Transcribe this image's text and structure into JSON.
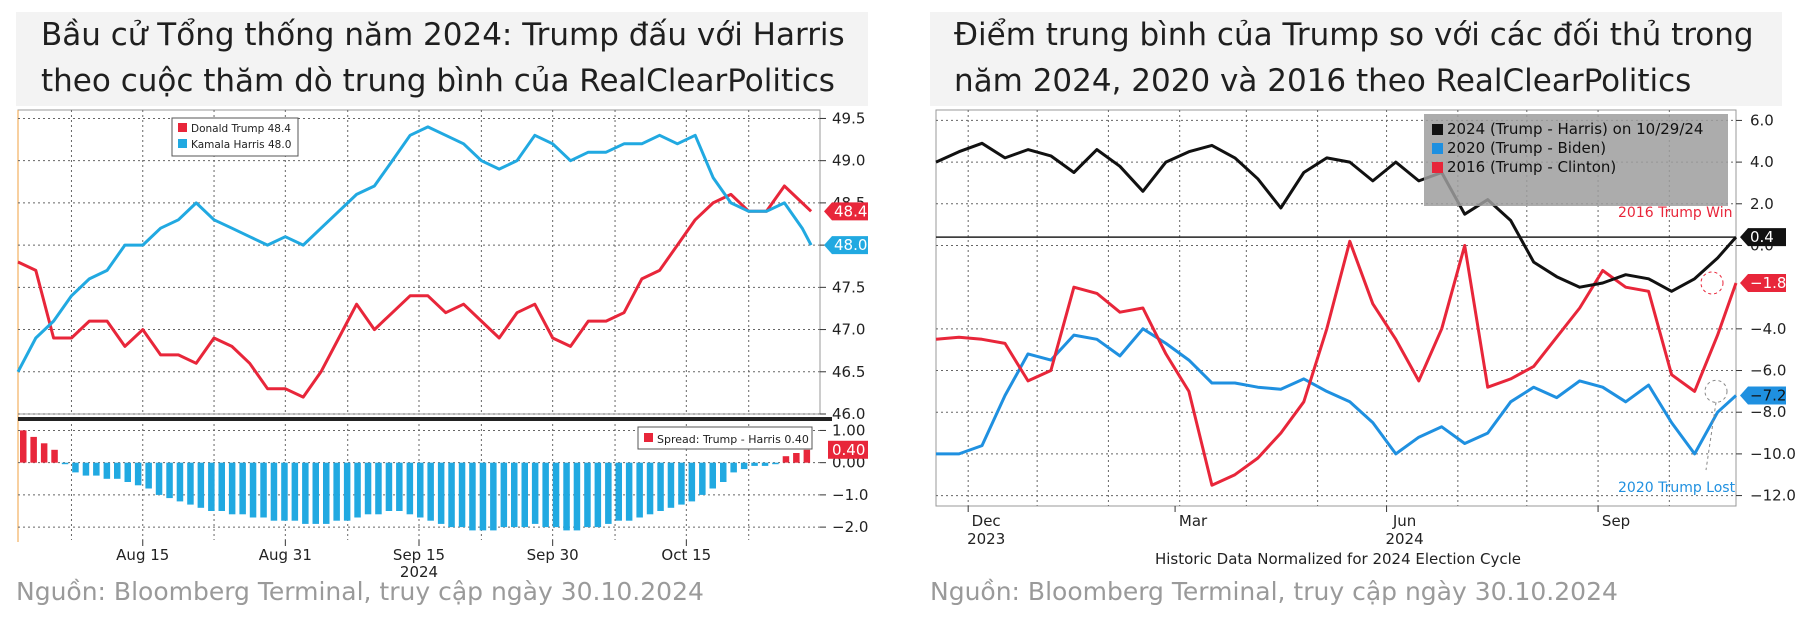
{
  "left": {
    "title_line1": "Bầu cử Tổng thống năm 2024: Trump đấu với Harris",
    "title_line2": "theo cuộc thăm dò trung bình của RealClearPolitics",
    "source": "Nguồn: Bloomberg Terminal,  truy cập ngày 30.10.2024"
  },
  "right": {
    "title_line1": "Điểm trung bình của Trump so với các đối thủ trong",
    "title_line2": "năm 2024, 2020 và 2016 theo RealClearPolitics",
    "source": "Nguồn: Bloomberg Terminal,  truy cập ngày 30.10.2024"
  },
  "colors": {
    "trump": "#e8263a",
    "harris": "#21a9e1",
    "biden": "#1f90e0",
    "clinton": "#e8263a",
    "y2024": "#111111",
    "spread_pos": "#e8263a",
    "spread_neg": "#21a9e1"
  },
  "chart_data": [
    {
      "type": "line",
      "title": "",
      "xlabel": "",
      "ylabel": "",
      "ylim": [
        46.0,
        49.6
      ],
      "x_ticks": [
        "Aug 15",
        "Aug 31",
        "Sep 15",
        "Sep 30",
        "Oct 15"
      ],
      "x_year_label": "2024",
      "y_ticks": [
        "49.5",
        "49.0",
        "48.5",
        "48.0",
        "47.5",
        "47.0",
        "46.5",
        "46.0"
      ],
      "legend": {
        "placement": "top-left",
        "entries": [
          {
            "name": "Donald Trump",
            "value": "48.4"
          },
          {
            "name": "Kamala Harris",
            "value": "48.0"
          }
        ]
      },
      "last_value_labels": [
        "48.4",
        "48.0"
      ],
      "x_days_note": "day index 0 = Aug 1 2024 .. 90 = Oct 30 2024",
      "series": [
        {
          "name": "Donald Trump",
          "color": "trump",
          "x": [
            0,
            2,
            4,
            6,
            8,
            10,
            12,
            14,
            16,
            18,
            20,
            22,
            24,
            26,
            28,
            30,
            32,
            34,
            36,
            38,
            40,
            42,
            44,
            46,
            48,
            50,
            52,
            54,
            56,
            58,
            60,
            62,
            64,
            66,
            68,
            70,
            72,
            74,
            76,
            78,
            80,
            82,
            84,
            86,
            88,
            89
          ],
          "y": [
            47.8,
            47.7,
            46.9,
            46.9,
            47.1,
            47.1,
            46.8,
            47.0,
            46.7,
            46.7,
            46.6,
            46.9,
            46.8,
            46.6,
            46.3,
            46.3,
            46.2,
            46.5,
            46.9,
            47.3,
            47.0,
            47.2,
            47.4,
            47.4,
            47.2,
            47.3,
            47.1,
            46.9,
            47.2,
            47.3,
            46.9,
            46.8,
            47.1,
            47.1,
            47.2,
            47.6,
            47.7,
            48.0,
            48.3,
            48.5,
            48.6,
            48.4,
            48.4,
            48.7,
            48.5,
            48.4
          ]
        },
        {
          "name": "Kamala Harris",
          "color": "harris",
          "x": [
            0,
            2,
            4,
            6,
            8,
            10,
            12,
            14,
            16,
            18,
            20,
            22,
            24,
            26,
            28,
            30,
            32,
            34,
            36,
            38,
            40,
            42,
            44,
            46,
            48,
            50,
            52,
            54,
            56,
            58,
            60,
            62,
            64,
            66,
            68,
            70,
            72,
            74,
            76,
            78,
            80,
            82,
            84,
            86,
            88,
            89
          ],
          "y": [
            46.5,
            46.9,
            47.1,
            47.4,
            47.6,
            47.7,
            48.0,
            48.0,
            48.2,
            48.3,
            48.5,
            48.3,
            48.2,
            48.1,
            48.0,
            48.1,
            48.0,
            48.2,
            48.4,
            48.6,
            48.7,
            49.0,
            49.3,
            49.4,
            49.3,
            49.2,
            49.0,
            48.9,
            49.0,
            49.3,
            49.2,
            49.0,
            49.1,
            49.1,
            49.2,
            49.2,
            49.3,
            49.2,
            49.3,
            48.8,
            48.5,
            48.4,
            48.4,
            48.5,
            48.2,
            48.0
          ]
        }
      ]
    },
    {
      "type": "bar",
      "title": "",
      "legend": {
        "placement": "top-right",
        "entries": [
          {
            "name": "Spread: Trump - Harris",
            "value": "0.40"
          }
        ]
      },
      "last_value_label": "0.40",
      "y_ticks": [
        "1.00",
        "0.00",
        "-1.00",
        "-2.00"
      ],
      "ylim": [
        -2.4,
        1.2
      ],
      "values": [
        1.0,
        0.8,
        0.6,
        0.4,
        0.0,
        -0.3,
        -0.4,
        -0.4,
        -0.5,
        -0.5,
        -0.6,
        -0.7,
        -0.8,
        -1.0,
        -1.1,
        -1.2,
        -1.3,
        -1.4,
        -1.5,
        -1.5,
        -1.6,
        -1.6,
        -1.7,
        -1.7,
        -1.8,
        -1.8,
        -1.8,
        -1.9,
        -1.9,
        -1.9,
        -1.8,
        -1.8,
        -1.7,
        -1.6,
        -1.6,
        -1.5,
        -1.5,
        -1.6,
        -1.7,
        -1.8,
        -1.9,
        -2.0,
        -2.0,
        -2.1,
        -2.1,
        -2.1,
        -2.0,
        -2.0,
        -2.0,
        -1.9,
        -2.0,
        -2.0,
        -2.1,
        -2.1,
        -2.0,
        -2.0,
        -1.9,
        -1.8,
        -1.8,
        -1.7,
        -1.6,
        -1.5,
        -1.4,
        -1.3,
        -1.2,
        -1.0,
        -0.8,
        -0.6,
        -0.3,
        -0.2,
        -0.1,
        -0.1,
        0.0,
        0.2,
        0.3,
        0.4
      ]
    },
    {
      "type": "line",
      "title": "",
      "xlabel": "Historic Data Normalized for 2024 Election Cycle",
      "ylabel": "",
      "ylim": [
        -12.5,
        6.5
      ],
      "x_ticks": [
        {
          "label": "Dec",
          "sub": "2023"
        },
        {
          "label": "Mar",
          "sub": ""
        },
        {
          "label": "Jun",
          "sub": "2024"
        },
        {
          "label": "Sep",
          "sub": ""
        }
      ],
      "y_ticks": [
        "6.0",
        "4.0",
        "2.0",
        "0.0",
        "-4.0",
        "-6.0",
        "-8.0",
        "-10.0",
        "-12.0"
      ],
      "legend": {
        "placement": "top-right",
        "entries": [
          {
            "name": "2024 (Trump - Harris) on 10/29/24"
          },
          {
            "name": "2020 (Trump - Biden)"
          },
          {
            "name": "2016 (Trump - Clinton)"
          }
        ]
      },
      "annotations": [
        "2016 Trump Win",
        "2020 Trump Lost"
      ],
      "last_value_labels": [
        "0.4",
        "-1.8",
        "-7.2"
      ],
      "x_days_note": "day index 0 = Nov 16 2023 .. 348 = Oct 29 2024",
      "series": [
        {
          "name": "2024 (Trump - Harris) on 10/29/24",
          "color": "y2024",
          "x": [
            0,
            10,
            20,
            30,
            40,
            50,
            60,
            70,
            80,
            90,
            100,
            110,
            120,
            130,
            140,
            150,
            160,
            170,
            180,
            190,
            200,
            210,
            220,
            230,
            240,
            250,
            260,
            270,
            280,
            290,
            300,
            310,
            320,
            330,
            340,
            348
          ],
          "y": [
            4.0,
            4.5,
            4.9,
            4.2,
            4.6,
            4.3,
            3.5,
            4.6,
            3.8,
            2.6,
            4.0,
            4.5,
            4.8,
            4.2,
            3.2,
            1.8,
            3.5,
            4.2,
            4.0,
            3.1,
            4.0,
            3.1,
            3.5,
            1.5,
            2.2,
            1.2,
            -0.8,
            -1.5,
            -2.0,
            -1.8,
            -1.4,
            -1.6,
            -2.2,
            -1.6,
            -0.6,
            0.4
          ]
        },
        {
          "name": "2020 (Trump - Biden)",
          "color": "biden",
          "x": [
            0,
            10,
            20,
            30,
            40,
            50,
            60,
            70,
            80,
            90,
            100,
            110,
            120,
            130,
            140,
            150,
            160,
            170,
            180,
            190,
            200,
            210,
            220,
            230,
            240,
            250,
            260,
            270,
            280,
            290,
            300,
            310,
            320,
            330,
            340,
            348
          ],
          "y": [
            -10.0,
            -10.0,
            -9.6,
            -7.2,
            -5.2,
            -5.5,
            -4.3,
            -4.5,
            -5.3,
            -4.0,
            -4.7,
            -5.5,
            -6.6,
            -6.6,
            -6.8,
            -6.9,
            -6.4,
            -7.0,
            -7.5,
            -8.5,
            -10.0,
            -9.2,
            -8.7,
            -9.5,
            -9.0,
            -7.5,
            -6.8,
            -7.3,
            -6.5,
            -6.8,
            -7.5,
            -6.7,
            -8.5,
            -10.0,
            -8.0,
            -7.2
          ]
        },
        {
          "name": "2016 (Trump - Clinton)",
          "color": "clinton",
          "x": [
            0,
            10,
            20,
            30,
            40,
            50,
            60,
            70,
            80,
            90,
            100,
            110,
            120,
            130,
            140,
            150,
            160,
            170,
            180,
            190,
            200,
            210,
            220,
            230,
            240,
            250,
            260,
            270,
            280,
            290,
            300,
            310,
            320,
            330,
            340,
            348
          ],
          "y": [
            -4.5,
            -4.4,
            -4.5,
            -4.7,
            -6.5,
            -6.0,
            -2.0,
            -2.3,
            -3.2,
            -3.0,
            -5.2,
            -7.0,
            -11.5,
            -11.0,
            -10.2,
            -9.0,
            -7.5,
            -4.0,
            0.2,
            -2.8,
            -4.5,
            -6.5,
            -4.0,
            0.0,
            -6.8,
            -6.4,
            -5.8,
            -4.4,
            -3.0,
            -1.2,
            -2.0,
            -2.2,
            -6.2,
            -7.0,
            -4.3,
            -1.8
          ]
        }
      ]
    }
  ]
}
